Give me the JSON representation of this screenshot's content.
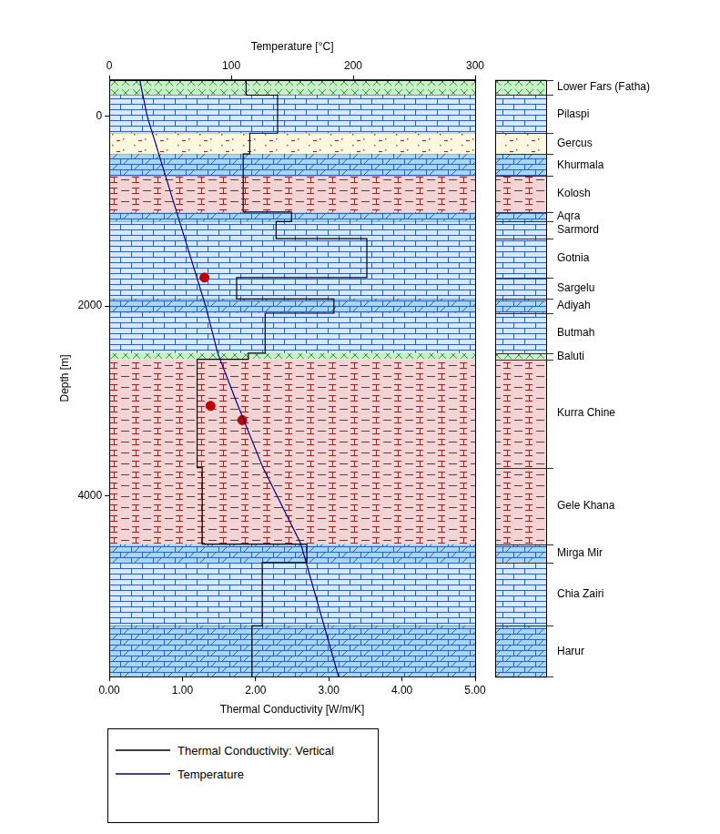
{
  "chart_data": {
    "type": "depth_profile",
    "x_label": "Thermal Conductivity [W/m/K]",
    "x2_label": "Temperature [°C]",
    "y_label": "Depth [m]",
    "xlim": [
      0,
      5
    ],
    "xticks": [
      {
        "value": 0,
        "label": "0.00"
      },
      {
        "value": 1,
        "label": "1.00"
      },
      {
        "value": 2,
        "label": "2.00"
      },
      {
        "value": 3,
        "label": "3.00"
      },
      {
        "value": 4,
        "label": "4.00"
      },
      {
        "value": 5,
        "label": "5.00"
      }
    ],
    "x2lim": [
      0,
      300
    ],
    "x2ticks": [
      0,
      100,
      200,
      300
    ],
    "ylim": [
      -380,
      5900
    ],
    "yticks": [
      0,
      2000,
      4000
    ],
    "grid": false,
    "legend": "bottom",
    "series": [
      {
        "name": "Thermal Conductivity: Vertical",
        "color": "#000000",
        "line_style": "steps",
        "values": [
          1.87,
          2.3,
          1.92,
          1.83,
          1.83,
          2.49,
          2.28,
          3.52,
          1.74,
          3.07,
          2.13,
          1.9,
          1.2,
          1.27,
          2.7,
          2.09,
          1.95
        ]
      },
      {
        "name": "Temperature",
        "color": "#000080",
        "line_style": "solid",
        "axis": "x2",
        "depth": [
          -380,
          0,
          1000,
          2000,
          2500,
          3000,
          3700,
          4500,
          5900
        ],
        "values": [
          25,
          31,
          55,
          79,
          89,
          104,
          126,
          157,
          188
        ]
      }
    ],
    "measured_temperature": {
      "color": "#c00000",
      "marker": "circle",
      "axis": "x2",
      "depth": [
        1700,
        3050,
        3200
      ],
      "values": [
        78,
        83,
        109
      ]
    },
    "formations": [
      {
        "name": "Lower Fars (Fatha)",
        "top": -380,
        "base": -220,
        "color": "#c8f0c8"
      },
      {
        "name": "Pilaspi",
        "top": -220,
        "base": 180,
        "color": "#dbe9f7"
      },
      {
        "name": "Gercus",
        "top": 180,
        "base": 400,
        "color": "#fff8e0"
      },
      {
        "name": "Khurmala",
        "top": 400,
        "base": 630,
        "color": "#a8d8f0"
      },
      {
        "name": "Kolosh",
        "top": 630,
        "base": 1010,
        "color": "#f2d4d4"
      },
      {
        "name": "Aqra",
        "top": 1010,
        "base": 1110,
        "color": "#a8d8f0"
      },
      {
        "name": "Sarmord",
        "top": 1110,
        "base": 1290,
        "color": "#dbe9f7"
      },
      {
        "name": "Gotnia",
        "top": 1290,
        "base": 1700,
        "color": "#dbe9f7"
      },
      {
        "name": "Sargelu",
        "top": 1700,
        "base": 1925,
        "color": "#dbe9f7"
      },
      {
        "name": "Adiyah",
        "top": 1925,
        "base": 2075,
        "color": "#a8d8f0"
      },
      {
        "name": "Butmah",
        "top": 2075,
        "base": 2495,
        "color": "#dbe9f7"
      },
      {
        "name": "Baluti",
        "top": 2495,
        "base": 2560,
        "color": "#c8f0c8"
      },
      {
        "name": "Kurra Chine",
        "top": 2560,
        "base": 3700,
        "color": "#f2d4d4"
      },
      {
        "name": "Gele Khana",
        "top": 3700,
        "base": 4505,
        "color": "#f2d4d4"
      },
      {
        "name": "Mirga Mir",
        "top": 4505,
        "base": 4700,
        "color": "#a8d8f0"
      },
      {
        "name": "Chia Zairi",
        "top": 4700,
        "base": 5365,
        "color": "#dbe9f7"
      },
      {
        "name": "Harur",
        "top": 5365,
        "base": 5900,
        "color": "#a8d8f0"
      }
    ]
  }
}
